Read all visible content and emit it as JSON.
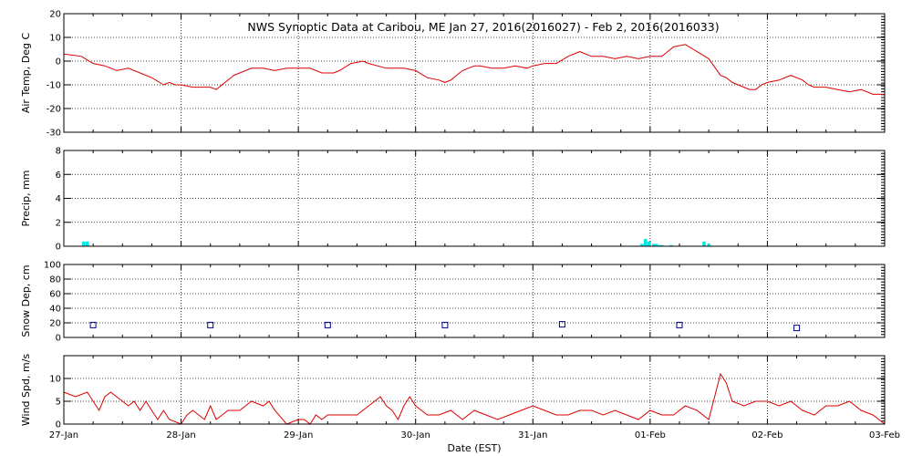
{
  "title": "NWS Synoptic Data at Caribou, ME   Jan 27, 2016(2016027) - Feb  2, 2016(2016033)",
  "xlabel": "Date (EST)",
  "x_ticks": [
    "27-Jan",
    "28-Jan",
    "29-Jan",
    "30-Jan",
    "31-Jan",
    "01-Feb",
    "02-Feb",
    "03-Feb"
  ],
  "colors": {
    "temp": "#dd0000",
    "precip": "#00e5e5",
    "snow": "#000080",
    "wind": "#dd0000"
  },
  "chart_data": [
    {
      "type": "line",
      "ylabel": "Air Temp, Deg C",
      "ylim": [
        -30,
        20
      ],
      "y_ticks": [
        "20",
        "10",
        "0",
        "-10",
        "-20",
        "-30"
      ],
      "grid": true,
      "x_unit": "days since 27-Jan 00:00",
      "x": [
        0,
        0.15,
        0.25,
        0.35,
        0.45,
        0.55,
        0.65,
        0.75,
        0.85,
        0.9,
        0.95,
        1.0,
        1.1,
        1.2,
        1.25,
        1.3,
        1.45,
        1.6,
        1.7,
        1.8,
        1.9,
        2.0,
        2.1,
        2.2,
        2.3,
        2.35,
        2.45,
        2.55,
        2.6,
        2.75,
        2.9,
        3.0,
        3.1,
        3.2,
        3.25,
        3.3,
        3.4,
        3.5,
        3.55,
        3.65,
        3.75,
        3.85,
        3.95,
        4.0,
        4.1,
        4.2,
        4.3,
        4.4,
        4.5,
        4.6,
        4.7,
        4.8,
        4.9,
        5.0,
        5.1,
        5.2,
        5.3,
        5.4,
        5.5,
        5.6,
        5.65,
        5.7,
        5.75,
        5.8,
        5.85,
        5.9,
        5.95,
        6.0,
        6.1,
        6.2,
        6.3,
        6.35,
        6.4,
        6.5,
        6.6,
        6.7,
        6.8,
        6.9,
        7.0
      ],
      "values": [
        3,
        2,
        -1,
        -2,
        -4,
        -3,
        -5,
        -7,
        -10,
        -9,
        -10,
        -10,
        -11,
        -11,
        -11,
        -12,
        -6,
        -3,
        -3,
        -4,
        -3,
        -3,
        -3,
        -5,
        -5,
        -4,
        -1,
        0,
        -1,
        -3,
        -3,
        -4,
        -7,
        -8,
        -9,
        -8,
        -4,
        -2,
        -2,
        -3,
        -3,
        -2,
        -3,
        -2,
        -1,
        -1,
        2,
        4,
        2,
        2,
        1,
        2,
        1,
        2,
        2,
        6,
        7,
        4,
        1,
        -6,
        -7,
        -9,
        -10,
        -11,
        -12,
        -12,
        -10,
        -9,
        -8,
        -6,
        -8,
        -10,
        -11,
        -11,
        -12,
        -13,
        -12,
        -14,
        -14
      ]
    },
    {
      "type": "bar",
      "ylabel": "Precip, mm",
      "ylim": [
        0,
        8
      ],
      "y_ticks": [
        "8",
        "6",
        "4",
        "2",
        "0"
      ],
      "grid": true,
      "x_unit": "days since 27-Jan 00:00",
      "x": [
        0.17,
        0.2,
        4.93,
        4.96,
        4.99,
        5.03,
        5.05,
        5.07,
        5.1,
        5.18,
        5.46,
        5.5
      ],
      "values": [
        0.4,
        0.4,
        0.2,
        0.6,
        0.4,
        0.2,
        0.2,
        0.1,
        0.1,
        0.1,
        0.4,
        0.2
      ]
    },
    {
      "type": "scatter",
      "ylabel": "Snow Dep, cm",
      "ylim": [
        0,
        100
      ],
      "y_ticks": [
        "100",
        "80",
        "60",
        "40",
        "20",
        "0"
      ],
      "grid": true,
      "marker": "open-square",
      "x_unit": "days since 27-Jan 00:00",
      "x": [
        0.25,
        1.25,
        2.25,
        3.25,
        4.25,
        5.25,
        6.25
      ],
      "values": [
        17,
        17,
        17,
        17,
        18,
        17,
        13
      ]
    },
    {
      "type": "line",
      "ylabel": "Wind Spd, m/s",
      "ylim": [
        0,
        15
      ],
      "y_ticks": [
        "10",
        "5",
        "0"
      ],
      "grid": true,
      "x_unit": "days since 27-Jan 00:00",
      "x": [
        0,
        0.1,
        0.2,
        0.3,
        0.35,
        0.4,
        0.5,
        0.55,
        0.6,
        0.65,
        0.7,
        0.75,
        0.8,
        0.85,
        0.9,
        1.0,
        1.05,
        1.1,
        1.2,
        1.25,
        1.3,
        1.35,
        1.4,
        1.5,
        1.6,
        1.7,
        1.75,
        1.8,
        1.9,
        2.0,
        2.05,
        2.1,
        2.15,
        2.2,
        2.25,
        2.3,
        2.4,
        2.5,
        2.6,
        2.7,
        2.75,
        2.8,
        2.85,
        2.9,
        2.95,
        3.0,
        3.1,
        3.2,
        3.3,
        3.4,
        3.5,
        3.6,
        3.7,
        3.8,
        3.9,
        4.0,
        4.1,
        4.2,
        4.3,
        4.4,
        4.5,
        4.6,
        4.7,
        4.8,
        4.9,
        5.0,
        5.1,
        5.2,
        5.3,
        5.4,
        5.5,
        5.55,
        5.6,
        5.65,
        5.7,
        5.8,
        5.9,
        6.0,
        6.1,
        6.2,
        6.3,
        6.4,
        6.5,
        6.6,
        6.7,
        6.8,
        6.9,
        6.95,
        7.0
      ],
      "values": [
        7,
        6,
        7,
        3,
        6,
        7,
        5,
        4,
        5,
        3,
        5,
        3,
        1,
        3,
        1,
        0,
        2,
        3,
        1,
        4,
        1,
        2,
        3,
        3,
        5,
        4,
        5,
        3,
        0,
        1,
        1,
        0,
        2,
        1,
        2,
        2,
        2,
        2,
        4,
        6,
        4,
        3,
        1,
        4,
        6,
        4,
        2,
        2,
        3,
        1,
        3,
        2,
        1,
        2,
        3,
        4,
        3,
        2,
        2,
        3,
        3,
        2,
        3,
        2,
        1,
        3,
        2,
        2,
        4,
        3,
        1,
        6,
        11,
        9,
        5,
        4,
        5,
        5,
        4,
        5,
        3,
        2,
        4,
        4,
        5,
        3,
        2,
        1,
        0
      ]
    }
  ]
}
